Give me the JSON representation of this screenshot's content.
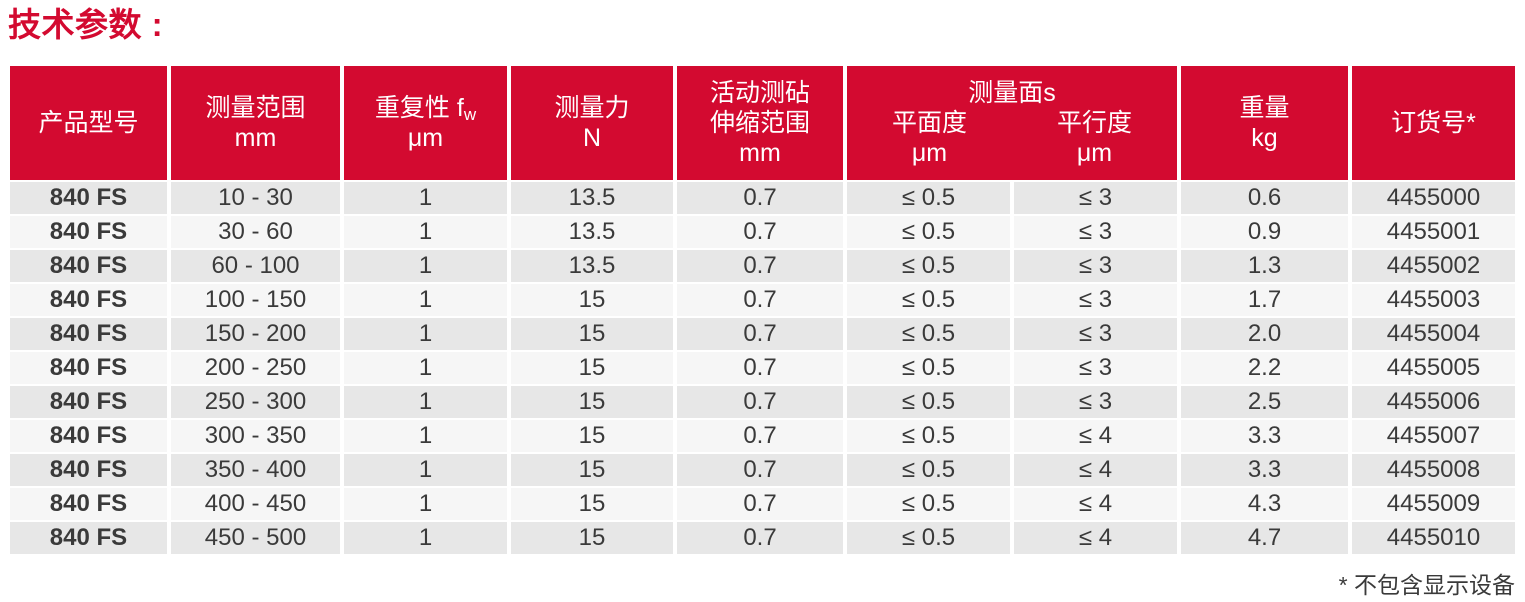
{
  "title": "技术参数 :",
  "footnote": "* 不包含显示设备",
  "colors": {
    "accent_red": "#d30a30",
    "row_odd_bg": "#e7e7e7",
    "row_even_bg": "#f6f6f6",
    "header_text": "#ffffff",
    "body_text": "#3a3a3a"
  },
  "table": {
    "headers": {
      "product_model": {
        "line1": "产品型号"
      },
      "measuring_range": {
        "line1": "测量范围",
        "unit": "mm"
      },
      "repeatability": {
        "line1": "重复性 f",
        "subscript": "w",
        "unit": "μm"
      },
      "measuring_force": {
        "line1": "测量力",
        "unit": "N"
      },
      "anvil_range": {
        "line1": "活动测砧",
        "line2": "伸缩范围",
        "unit": "mm"
      },
      "measuring_faces": {
        "group": "测量面s",
        "flatness": "平面度",
        "flatness_unit": "μm",
        "parallelism": "平行度",
        "parallelism_unit": "μm"
      },
      "weight": {
        "line1": "重量",
        "unit": "kg"
      },
      "order_no": {
        "line1": "订货号*"
      }
    },
    "rows": [
      [
        "840 FS",
        "10 - 30",
        "1",
        "13.5",
        "0.7",
        "≤ 0.5",
        "≤ 3",
        "0.6",
        "4455000"
      ],
      [
        "840 FS",
        "30 - 60",
        "1",
        "13.5",
        "0.7",
        "≤ 0.5",
        "≤ 3",
        "0.9",
        "4455001"
      ],
      [
        "840 FS",
        "60 - 100",
        "1",
        "13.5",
        "0.7",
        "≤ 0.5",
        "≤ 3",
        "1.3",
        "4455002"
      ],
      [
        "840 FS",
        "100 - 150",
        "1",
        "15",
        "0.7",
        "≤ 0.5",
        "≤ 3",
        "1.7",
        "4455003"
      ],
      [
        "840 FS",
        "150 - 200",
        "1",
        "15",
        "0.7",
        "≤ 0.5",
        "≤ 3",
        "2.0",
        "4455004"
      ],
      [
        "840 FS",
        "200 - 250",
        "1",
        "15",
        "0.7",
        "≤ 0.5",
        "≤ 3",
        "2.2",
        "4455005"
      ],
      [
        "840 FS",
        "250 - 300",
        "1",
        "15",
        "0.7",
        "≤ 0.5",
        "≤ 3",
        "2.5",
        "4455006"
      ],
      [
        "840 FS",
        "300 - 350",
        "1",
        "15",
        "0.7",
        "≤ 0.5",
        "≤ 4",
        "3.3",
        "4455007"
      ],
      [
        "840 FS",
        "350 - 400",
        "1",
        "15",
        "0.7",
        "≤ 0.5",
        "≤ 4",
        "3.3",
        "4455008"
      ],
      [
        "840 FS",
        "400 - 450",
        "1",
        "15",
        "0.7",
        "≤ 0.5",
        "≤ 4",
        "4.3",
        "4455009"
      ],
      [
        "840 FS",
        "450 - 500",
        "1",
        "15",
        "0.7",
        "≤ 0.5",
        "≤ 4",
        "4.7",
        "4455010"
      ]
    ]
  }
}
